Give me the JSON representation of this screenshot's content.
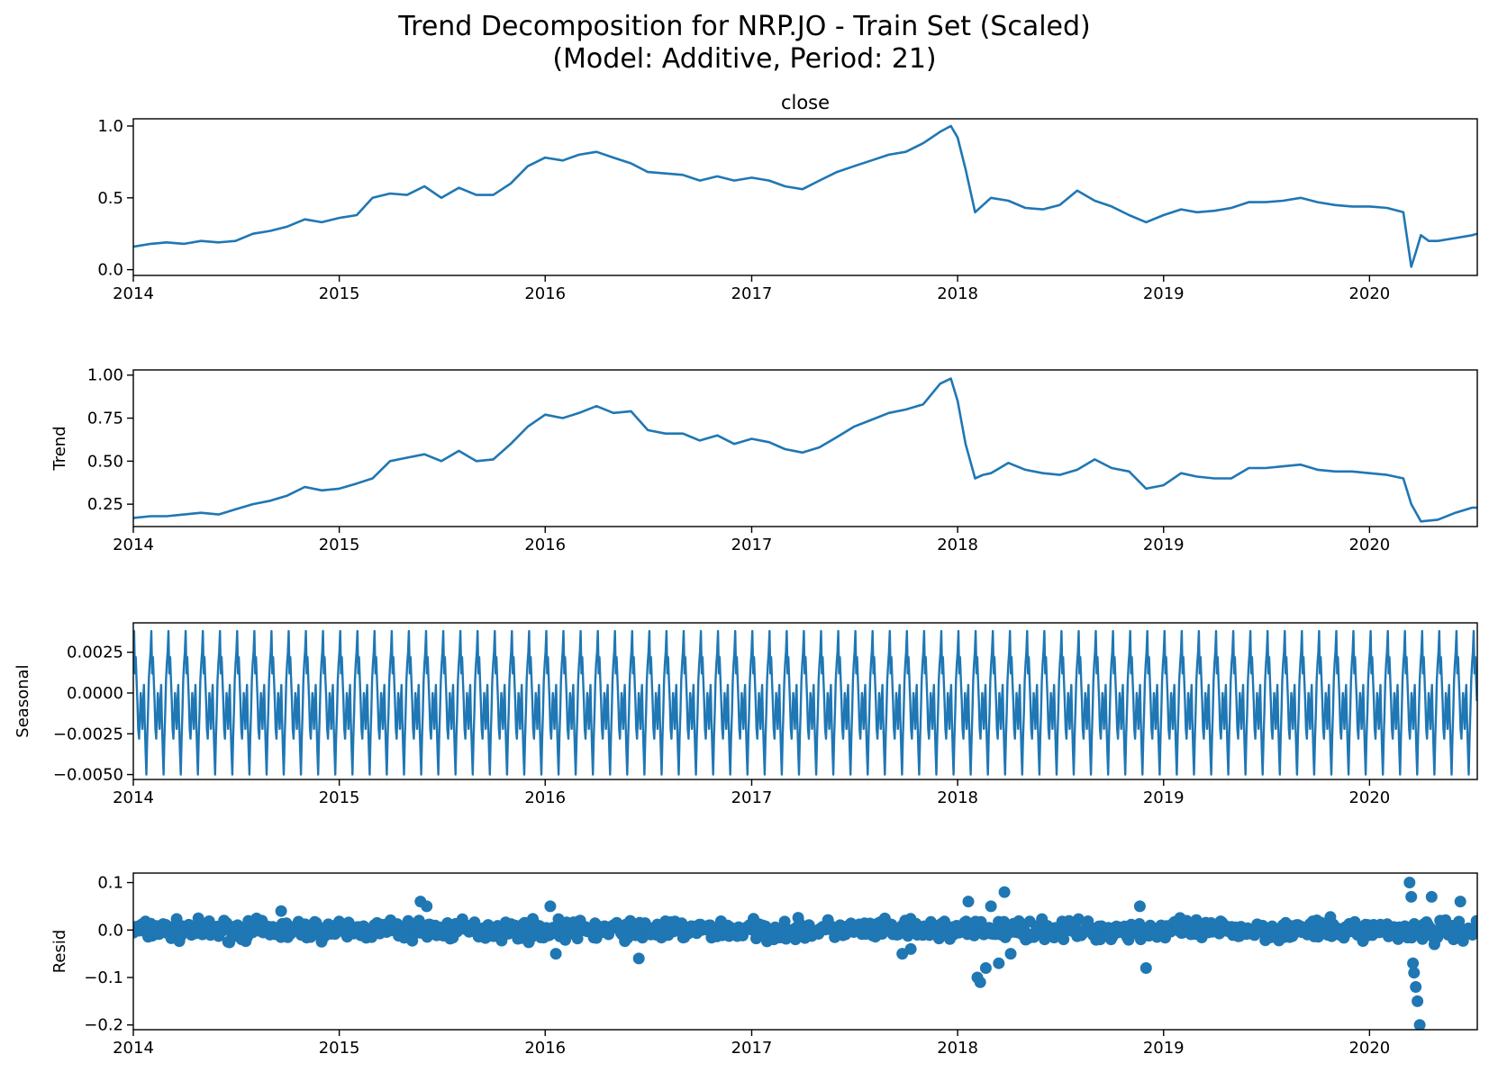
{
  "figure": {
    "title_line1": "Trend Decomposition for NRP.JO - Train Set (Scaled)",
    "title_line2": "(Model: Additive, Period: 21)"
  },
  "colors": {
    "line": "#1f77b4",
    "axes": "#000000"
  },
  "chart_data": [
    {
      "type": "line",
      "title": "close",
      "ylabel": "",
      "x_range": [
        "2014-01-01",
        "2020-07-10"
      ],
      "xticks": [
        "2014",
        "2015",
        "2016",
        "2017",
        "2018",
        "2019",
        "2020"
      ],
      "ylim": [
        -0.04,
        1.05
      ],
      "yticks": [
        "0.0",
        "0.5",
        "1.0"
      ],
      "ytick_values": [
        0.0,
        0.5,
        1.0
      ],
      "series": [
        {
          "x": [
            "2014-01-01",
            "2014-02-01",
            "2014-03-01",
            "2014-04-01",
            "2014-05-01",
            "2014-06-01",
            "2014-07-01",
            "2014-08-01",
            "2014-09-01",
            "2014-10-01",
            "2014-11-01",
            "2014-12-01",
            "2015-01-01",
            "2015-02-01",
            "2015-03-01",
            "2015-04-01",
            "2015-05-01",
            "2015-06-01",
            "2015-07-01",
            "2015-08-01",
            "2015-09-01",
            "2015-10-01",
            "2015-11-01",
            "2015-12-01",
            "2016-01-01",
            "2016-02-01",
            "2016-03-01",
            "2016-04-01",
            "2016-05-01",
            "2016-06-01",
            "2016-07-01",
            "2016-08-01",
            "2016-09-01",
            "2016-10-01",
            "2016-11-01",
            "2016-12-01",
            "2017-01-01",
            "2017-02-01",
            "2017-03-01",
            "2017-04-01",
            "2017-05-01",
            "2017-06-01",
            "2017-07-01",
            "2017-08-01",
            "2017-09-01",
            "2017-10-01",
            "2017-11-01",
            "2017-12-01",
            "2017-12-20",
            "2018-01-01",
            "2018-01-15",
            "2018-02-01",
            "2018-02-15",
            "2018-03-01",
            "2018-04-01",
            "2018-05-01",
            "2018-06-01",
            "2018-07-01",
            "2018-08-01",
            "2018-09-01",
            "2018-10-01",
            "2018-11-01",
            "2018-12-01",
            "2019-01-01",
            "2019-02-01",
            "2019-03-01",
            "2019-04-01",
            "2019-05-01",
            "2019-06-01",
            "2019-07-01",
            "2019-08-01",
            "2019-09-01",
            "2019-10-01",
            "2019-11-01",
            "2019-12-01",
            "2020-01-01",
            "2020-02-01",
            "2020-03-01",
            "2020-03-15",
            "2020-03-23",
            "2020-04-01",
            "2020-04-15",
            "2020-05-01",
            "2020-06-01",
            "2020-07-01",
            "2020-07-10"
          ],
          "values": [
            0.16,
            0.18,
            0.19,
            0.18,
            0.2,
            0.19,
            0.2,
            0.25,
            0.27,
            0.3,
            0.35,
            0.33,
            0.36,
            0.38,
            0.5,
            0.53,
            0.52,
            0.58,
            0.5,
            0.57,
            0.52,
            0.52,
            0.6,
            0.72,
            0.78,
            0.76,
            0.8,
            0.82,
            0.78,
            0.74,
            0.68,
            0.67,
            0.66,
            0.62,
            0.65,
            0.62,
            0.64,
            0.62,
            0.58,
            0.56,
            0.62,
            0.68,
            0.72,
            0.76,
            0.8,
            0.82,
            0.88,
            0.96,
            1.0,
            0.92,
            0.7,
            0.4,
            0.45,
            0.5,
            0.48,
            0.43,
            0.42,
            0.45,
            0.55,
            0.48,
            0.44,
            0.38,
            0.33,
            0.38,
            0.42,
            0.4,
            0.41,
            0.43,
            0.47,
            0.47,
            0.48,
            0.5,
            0.47,
            0.45,
            0.44,
            0.44,
            0.43,
            0.4,
            0.02,
            0.12,
            0.24,
            0.2,
            0.2,
            0.22,
            0.24,
            0.25
          ]
        }
      ]
    },
    {
      "type": "line",
      "title": "",
      "ylabel": "Trend",
      "x_range": [
        "2014-01-01",
        "2020-07-10"
      ],
      "xticks": [
        "2014",
        "2015",
        "2016",
        "2017",
        "2018",
        "2019",
        "2020"
      ],
      "ylim": [
        0.12,
        1.03
      ],
      "yticks": [
        "0.25",
        "0.50",
        "0.75",
        "1.00"
      ],
      "ytick_values": [
        0.25,
        0.5,
        0.75,
        1.0
      ],
      "series": [
        {
          "x": [
            "2014-01-01",
            "2014-02-01",
            "2014-03-01",
            "2014-04-01",
            "2014-05-01",
            "2014-06-01",
            "2014-07-01",
            "2014-08-01",
            "2014-09-01",
            "2014-10-01",
            "2014-11-01",
            "2014-12-01",
            "2015-01-01",
            "2015-02-01",
            "2015-03-01",
            "2015-04-01",
            "2015-05-01",
            "2015-06-01",
            "2015-07-01",
            "2015-08-01",
            "2015-09-01",
            "2015-10-01",
            "2015-11-01",
            "2015-12-01",
            "2016-01-01",
            "2016-02-01",
            "2016-03-01",
            "2016-04-01",
            "2016-05-01",
            "2016-06-01",
            "2016-07-01",
            "2016-08-01",
            "2016-09-01",
            "2016-10-01",
            "2016-11-01",
            "2016-12-01",
            "2017-01-01",
            "2017-02-01",
            "2017-03-01",
            "2017-04-01",
            "2017-05-01",
            "2017-06-01",
            "2017-07-01",
            "2017-08-01",
            "2017-09-01",
            "2017-10-01",
            "2017-11-01",
            "2017-12-01",
            "2017-12-20",
            "2018-01-01",
            "2018-01-15",
            "2018-02-01",
            "2018-02-15",
            "2018-03-01",
            "2018-04-01",
            "2018-05-01",
            "2018-06-01",
            "2018-07-01",
            "2018-08-01",
            "2018-09-01",
            "2018-10-01",
            "2018-11-01",
            "2018-12-01",
            "2019-01-01",
            "2019-02-01",
            "2019-03-01",
            "2019-04-01",
            "2019-05-01",
            "2019-06-01",
            "2019-07-01",
            "2019-08-01",
            "2019-09-01",
            "2019-10-01",
            "2019-11-01",
            "2019-12-01",
            "2020-01-01",
            "2020-02-01",
            "2020-03-01",
            "2020-03-15",
            "2020-04-01",
            "2020-05-01",
            "2020-06-01",
            "2020-07-01",
            "2020-07-10"
          ],
          "values": [
            0.17,
            0.18,
            0.18,
            0.19,
            0.2,
            0.19,
            0.22,
            0.25,
            0.27,
            0.3,
            0.35,
            0.33,
            0.34,
            0.37,
            0.4,
            0.5,
            0.52,
            0.54,
            0.5,
            0.56,
            0.5,
            0.51,
            0.6,
            0.7,
            0.77,
            0.75,
            0.78,
            0.82,
            0.78,
            0.79,
            0.68,
            0.66,
            0.66,
            0.62,
            0.65,
            0.6,
            0.63,
            0.61,
            0.57,
            0.55,
            0.58,
            0.64,
            0.7,
            0.74,
            0.78,
            0.8,
            0.83,
            0.95,
            0.98,
            0.85,
            0.6,
            0.4,
            0.42,
            0.43,
            0.49,
            0.45,
            0.43,
            0.42,
            0.45,
            0.51,
            0.46,
            0.44,
            0.34,
            0.36,
            0.43,
            0.41,
            0.4,
            0.4,
            0.46,
            0.46,
            0.47,
            0.48,
            0.45,
            0.44,
            0.44,
            0.43,
            0.42,
            0.4,
            0.25,
            0.15,
            0.16,
            0.2,
            0.23,
            0.23
          ]
        }
      ]
    },
    {
      "type": "line",
      "title": "",
      "ylabel": "Seasonal",
      "x_range": [
        "2014-01-01",
        "2020-07-10"
      ],
      "xticks": [
        "2014",
        "2015",
        "2016",
        "2017",
        "2018",
        "2019",
        "2020"
      ],
      "ylim": [
        -0.0053,
        0.0043
      ],
      "yticks": [
        "0.0025",
        "0.0000",
        "−0.0025",
        "−0.0050"
      ],
      "ytick_values": [
        0.0025,
        0.0,
        -0.0025,
        -0.005
      ],
      "period_trading_days": 21,
      "cycle_values": [
        0.0025,
        0.0038,
        0.0012,
        0.0022,
        0.0008,
        -0.0005,
        -0.0022,
        -0.0028,
        -0.0015,
        0.0,
        -0.0008,
        -0.0022,
        -0.0005,
        0.0005,
        -0.0018,
        -0.0035,
        -0.005,
        -0.0028,
        -0.0012,
        0.0008,
        0.0018
      ]
    },
    {
      "type": "scatter",
      "title": "",
      "ylabel": "Resid",
      "x_range": [
        "2014-01-01",
        "2020-07-10"
      ],
      "xticks": [
        "2014",
        "2015",
        "2016",
        "2017",
        "2018",
        "2019",
        "2020"
      ],
      "ylim": [
        -0.21,
        0.12
      ],
      "yticks": [
        "0.1",
        "0.0",
        "−0.1",
        "−0.2"
      ],
      "ytick_values": [
        0.1,
        0.0,
        -0.1,
        -0.2
      ],
      "notable_points": {
        "x": [
          "2014-09-20",
          "2015-05-25",
          "2015-06-05",
          "2016-01-10",
          "2016-01-20",
          "2016-06-15",
          "2017-09-25",
          "2017-10-10",
          "2018-01-20",
          "2018-02-05",
          "2018-02-10",
          "2018-02-20",
          "2018-03-01",
          "2018-03-15",
          "2018-03-25",
          "2018-04-05",
          "2018-12-01",
          "2018-11-20",
          "2020-03-12",
          "2020-03-15",
          "2020-03-18",
          "2020-03-20",
          "2020-03-23",
          "2020-03-26",
          "2020-03-30",
          "2020-04-20",
          "2020-04-25",
          "2020-06-10"
        ],
        "values": [
          0.04,
          0.06,
          0.05,
          0.05,
          -0.05,
          -0.06,
          -0.05,
          -0.04,
          0.06,
          -0.1,
          -0.11,
          -0.08,
          0.05,
          -0.07,
          0.08,
          -0.05,
          -0.08,
          0.05,
          0.1,
          0.07,
          -0.07,
          -0.09,
          -0.12,
          -0.15,
          -0.2,
          0.07,
          -0.03,
          0.06
        ]
      },
      "noise_amplitude": 0.02
    }
  ]
}
